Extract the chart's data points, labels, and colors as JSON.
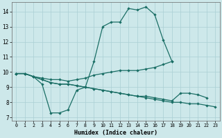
{
  "xlabel": "Humidex (Indice chaleur)",
  "xlim": [
    -0.5,
    23.5
  ],
  "ylim": [
    6.8,
    14.6
  ],
  "xticks": [
    0,
    1,
    2,
    3,
    4,
    5,
    6,
    7,
    8,
    9,
    10,
    11,
    12,
    13,
    14,
    15,
    16,
    17,
    18,
    19,
    20,
    21,
    22,
    23
  ],
  "yticks": [
    7,
    8,
    9,
    10,
    11,
    12,
    13,
    14
  ],
  "bg_color": "#cde8ea",
  "line_color": "#1a6e65",
  "grid_color": "#aacfd4",
  "lines": [
    {
      "x": [
        0,
        1,
        2,
        3,
        4,
        5,
        6,
        7,
        8,
        9,
        10,
        11,
        12,
        13,
        14,
        15,
        16,
        17,
        18
      ],
      "y": [
        9.9,
        9.9,
        9.7,
        9.2,
        7.3,
        7.3,
        7.5,
        8.8,
        9.0,
        10.7,
        13.0,
        13.3,
        13.3,
        14.2,
        14.1,
        14.3,
        13.8,
        12.1,
        10.7
      ]
    },
    {
      "x": [
        0,
        1,
        2,
        3,
        4,
        5,
        6,
        7,
        8,
        9,
        10,
        11,
        12,
        13,
        14,
        15,
        16,
        17,
        18
      ],
      "y": [
        9.9,
        9.9,
        9.7,
        9.6,
        9.5,
        9.5,
        9.4,
        9.5,
        9.6,
        9.8,
        9.9,
        10.0,
        10.1,
        10.1,
        10.1,
        10.2,
        10.3,
        10.5,
        10.7
      ]
    },
    {
      "x": [
        0,
        1,
        2,
        3,
        4,
        5,
        6,
        7,
        8,
        9,
        10,
        11,
        12,
        13,
        14,
        15,
        16,
        17,
        18,
        19,
        20,
        21,
        22
      ],
      "y": [
        9.9,
        9.9,
        9.7,
        9.5,
        9.3,
        9.2,
        9.2,
        9.1,
        9.0,
        8.9,
        8.8,
        8.7,
        8.6,
        8.5,
        8.4,
        8.4,
        8.3,
        8.2,
        8.1,
        8.6,
        8.6,
        8.5,
        8.3
      ]
    },
    {
      "x": [
        0,
        1,
        2,
        3,
        4,
        5,
        6,
        7,
        8,
        9,
        10,
        11,
        12,
        13,
        14,
        15,
        16,
        17,
        18,
        19,
        20,
        21,
        22,
        23
      ],
      "y": [
        9.9,
        9.9,
        9.7,
        9.5,
        9.3,
        9.2,
        9.2,
        9.1,
        9.0,
        8.9,
        8.8,
        8.7,
        8.6,
        8.5,
        8.4,
        8.3,
        8.2,
        8.1,
        8.0,
        8.0,
        7.9,
        7.9,
        7.8,
        7.7
      ]
    }
  ]
}
